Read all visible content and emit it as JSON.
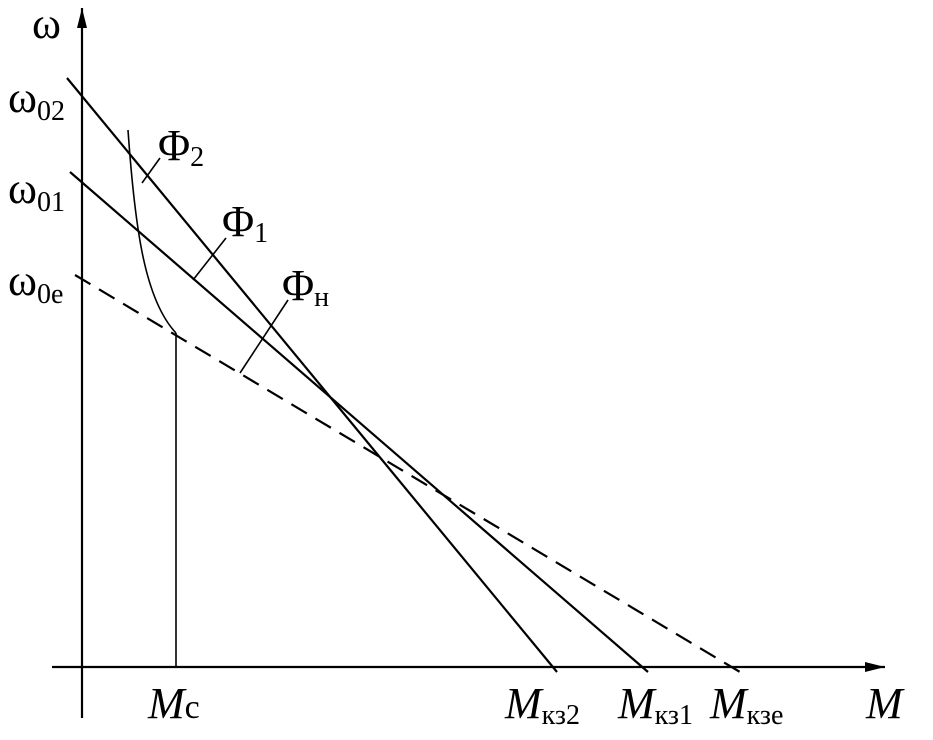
{
  "axes": {
    "y_label": "ω",
    "x_label": "M"
  },
  "y_marks": [
    {
      "symbol": "ω",
      "subscript": "02"
    },
    {
      "symbol": "ω",
      "subscript": "01"
    },
    {
      "symbol": "ω",
      "subscript": "0e"
    }
  ],
  "x_marks": [
    {
      "symbol": "M",
      "subscript": "c"
    },
    {
      "symbol": "M",
      "subscript": "кз2"
    },
    {
      "symbol": "M",
      "subscript": "кз1"
    },
    {
      "symbol": "M",
      "subscript": "кзе"
    }
  ],
  "curves": [
    {
      "symbol": "Φ",
      "subscript": "2"
    },
    {
      "symbol": "Φ",
      "subscript": "1"
    },
    {
      "symbol": "Φ",
      "subscript": "н"
    }
  ]
}
